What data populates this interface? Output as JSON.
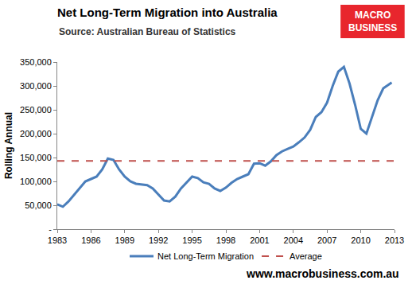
{
  "chart_data": {
    "type": "line",
    "title": "Net Long-Term Migration into Australia",
    "subtitle": "Source: Australian Bureau of Statistics",
    "y_label": "Rolling Annual",
    "logo": [
      "MACRO",
      "BUSINESS"
    ],
    "footer": "www.macrobusiness.com.au",
    "x": [
      1983,
      1983.5,
      1984,
      1984.5,
      1985,
      1985.5,
      1986,
      1986.5,
      1987,
      1987.5,
      1988,
      1988.5,
      1989,
      1989.5,
      1990,
      1990.5,
      1991,
      1991.5,
      1992,
      1992.5,
      1993,
      1993.5,
      1994,
      1994.5,
      1995,
      1995.5,
      1996,
      1996.5,
      1997,
      1997.5,
      1998,
      1998.5,
      1999,
      1999.5,
      2000,
      2000.5,
      2001,
      2001.5,
      2002,
      2002.5,
      2003,
      2003.5,
      2004,
      2004.5,
      2005,
      2005.5,
      2006,
      2006.5,
      2007,
      2007.5,
      2008,
      2008.5,
      2009,
      2009.5,
      2010,
      2010.5,
      2011,
      2011.5,
      2012,
      2012.5,
      2012.75
    ],
    "series": [
      {
        "name": "Net Long-Term Migration",
        "color": "#4a7ebb",
        "line_style": "solid",
        "values": [
          52000,
          47000,
          58000,
          72000,
          85000,
          100000,
          105000,
          110000,
          125000,
          148000,
          145000,
          125000,
          110000,
          100000,
          95000,
          93000,
          92000,
          85000,
          72000,
          60000,
          58000,
          68000,
          85000,
          98000,
          110000,
          107000,
          98000,
          95000,
          85000,
          80000,
          87000,
          97000,
          105000,
          110000,
          115000,
          137000,
          138000,
          133000,
          142000,
          155000,
          163000,
          168000,
          173000,
          182000,
          192000,
          208000,
          235000,
          245000,
          265000,
          300000,
          330000,
          340000,
          305000,
          260000,
          210000,
          200000,
          235000,
          270000,
          295000,
          303000,
          307000
        ]
      },
      {
        "name": "Average",
        "color": "#c0504d",
        "line_style": "dashed",
        "type": "hline",
        "value": 143000
      }
    ],
    "xlim": [
      1983,
      2013
    ],
    "xticks": [
      1983,
      1986,
      1989,
      1992,
      1995,
      1998,
      2001,
      2004,
      2007,
      2010,
      2013
    ],
    "ylim": [
      0,
      350000
    ],
    "yticks": [
      {
        "value": 0,
        "label": "-"
      },
      {
        "value": 50000,
        "label": "50,000"
      },
      {
        "value": 100000,
        "label": "100,000"
      },
      {
        "value": 150000,
        "label": "150,000"
      },
      {
        "value": 200000,
        "label": "200,000"
      },
      {
        "value": 250000,
        "label": "250,000"
      },
      {
        "value": 300000,
        "label": "300,000"
      },
      {
        "value": 350000,
        "label": "350,000"
      }
    ],
    "grid": false,
    "legend": "bottom"
  }
}
